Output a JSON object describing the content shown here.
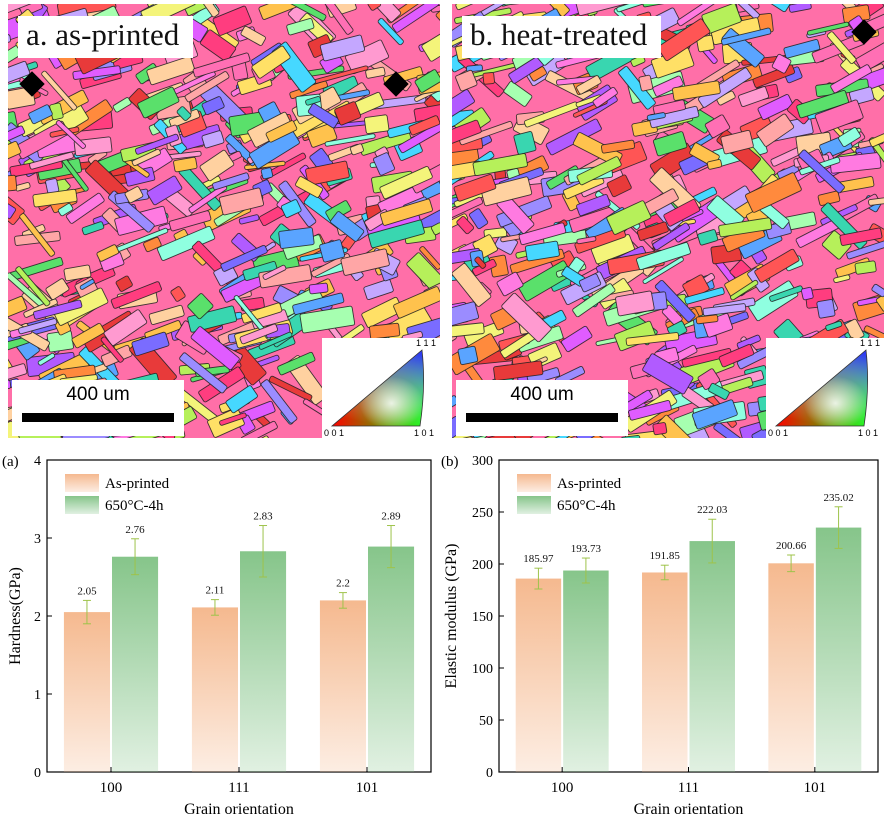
{
  "maps": [
    {
      "label": "a. as-printed",
      "scalebar": "400 um",
      "ipf": {
        "top": "1 1 1",
        "left": "0 0 1",
        "right": "1 0 1"
      },
      "seed": 7
    },
    {
      "label": "b. heat-treated",
      "scalebar": "400 um",
      "ipf": {
        "top": "1 1 1",
        "left": "0 0 1",
        "right": "1 0 1"
      },
      "seed": 31
    }
  ],
  "colors": {
    "as_printed": "#f5b98f",
    "heat_treated": "#86c58a",
    "error_bar": "#9ec34a"
  },
  "chart_data": [
    {
      "type": "bar",
      "panel_label": "(a)",
      "categories": [
        "100",
        "111",
        "101"
      ],
      "series": [
        {
          "name": "As-printed",
          "values": [
            2.05,
            2.11,
            2.2
          ],
          "errors": [
            0.15,
            0.1,
            0.1
          ]
        },
        {
          "name": "650°C-4h",
          "values": [
            2.76,
            2.83,
            2.89
          ],
          "errors": [
            0.23,
            0.33,
            0.27
          ]
        }
      ],
      "data_labels": [
        [
          "2.05",
          "2.11",
          "2.2"
        ],
        [
          "2.76",
          "2.83",
          "2.89"
        ]
      ],
      "xlabel": "Grain orientation",
      "ylabel": "Hardness(GPa)",
      "ylim": [
        0,
        4
      ],
      "yticks": [
        "0",
        "1",
        "2",
        "3",
        "4"
      ],
      "legend_position": "top-left"
    },
    {
      "type": "bar",
      "panel_label": "(b)",
      "categories": [
        "100",
        "111",
        "101"
      ],
      "series": [
        {
          "name": "As-printed",
          "values": [
            185.97,
            191.85,
            200.66
          ],
          "errors": [
            10,
            7,
            8
          ]
        },
        {
          "name": "650°C-4h",
          "values": [
            193.73,
            222.03,
            235.02
          ],
          "errors": [
            12,
            21,
            20
          ]
        }
      ],
      "data_labels": [
        [
          "185.97",
          "191.85",
          "200.66"
        ],
        [
          "193.73",
          "222.03",
          "235.02"
        ]
      ],
      "xlabel": "Grain orientation",
      "ylabel": "Elastic modulus (GPa)",
      "ylim": [
        0,
        300
      ],
      "yticks": [
        "0",
        "50",
        "100",
        "150",
        "200",
        "250",
        "300"
      ],
      "legend_position": "top-left"
    }
  ]
}
